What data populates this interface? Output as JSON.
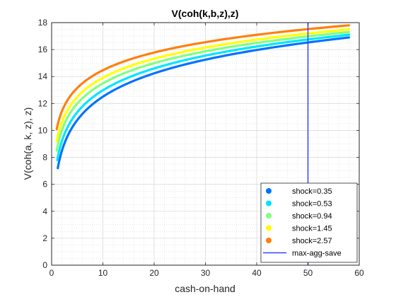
{
  "chart_data": {
    "type": "line",
    "title": "V(coh(k,b,z),z)",
    "xlabel": "cash-on-hand",
    "ylabel": "V(coh(a, k, z), z)",
    "xlim": [
      0,
      60
    ],
    "ylim": [
      0,
      18
    ],
    "xticks": [
      0,
      10,
      20,
      30,
      40,
      50,
      60
    ],
    "yticks": [
      0,
      2,
      4,
      6,
      8,
      10,
      12,
      14,
      16,
      18
    ],
    "grid": true,
    "minor_grid": true,
    "legend_position": "bottom-right",
    "series": [
      {
        "name": "shock=0.35",
        "color": "#0072ff",
        "x_start": 1.2,
        "x_end": 58,
        "y_start": 7.2,
        "y_end": 16.9
      },
      {
        "name": "shock=0.53",
        "color": "#00e5ff",
        "x_start": 1.1,
        "x_end": 58,
        "y_start": 7.8,
        "y_end": 17.1
      },
      {
        "name": "shock=0.94",
        "color": "#80ff80",
        "x_start": 1.0,
        "x_end": 58,
        "y_start": 8.5,
        "y_end": 17.3
      },
      {
        "name": "shock=1.45",
        "color": "#ffff00",
        "x_start": 1.0,
        "x_end": 58,
        "y_start": 9.2,
        "y_end": 17.5
      },
      {
        "name": "shock=2.57",
        "color": "#ff7f0e",
        "x_start": 1.0,
        "x_end": 58,
        "y_start": 10.1,
        "y_end": 17.8
      }
    ],
    "vline": {
      "name": "max-agg-save",
      "x": 50,
      "color": "#3344ff"
    }
  }
}
